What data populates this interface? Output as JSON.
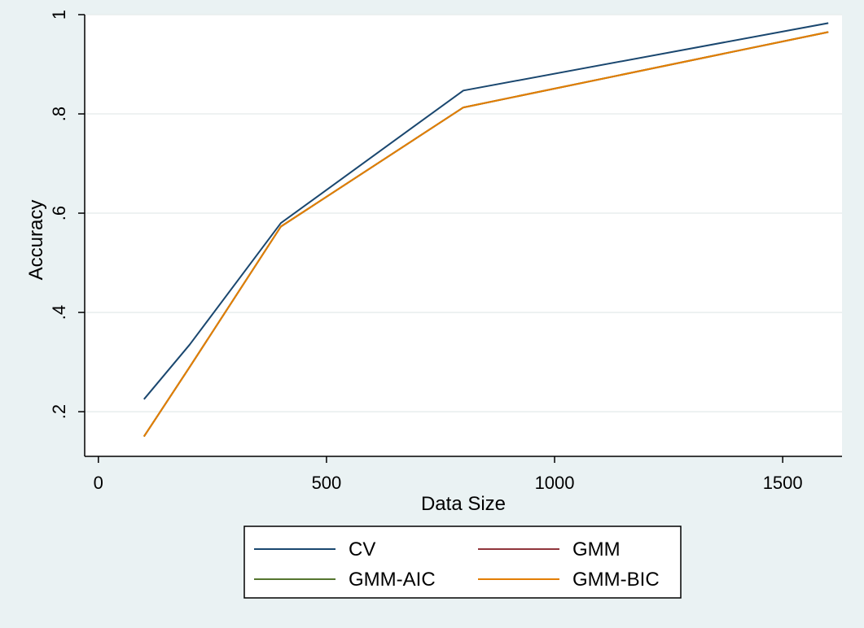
{
  "chart_data": {
    "type": "line",
    "xlabel": "Data Size",
    "ylabel": "Accuracy",
    "xlim": [
      -30,
      1630
    ],
    "ylim": [
      0.11,
      1.0
    ],
    "x_ticks": [
      0,
      500,
      1000,
      1500
    ],
    "x_tick_labels": [
      "0",
      "500",
      "1000",
      "1500"
    ],
    "y_ticks": [
      0.2,
      0.4,
      0.6,
      0.8,
      1.0
    ],
    "y_tick_labels": [
      ".2",
      ".4",
      ".6",
      ".8",
      "1"
    ],
    "grid": true,
    "legend_placement": "bottom",
    "series": [
      {
        "name": "CV",
        "color": "#1a476f",
        "x": [
          100,
          200,
          400,
          800,
          1600
        ],
        "y": [
          0.225,
          0.335,
          0.58,
          0.847,
          0.983
        ]
      },
      {
        "name": "GMM",
        "color": "#90353b",
        "x": [
          100,
          200,
          400,
          800,
          1600
        ],
        "y": [
          0.15,
          0.29,
          0.573,
          0.813,
          0.965
        ]
      },
      {
        "name": "GMM-AIC",
        "color": "#55752f",
        "x": [
          100,
          200,
          400,
          800,
          1600
        ],
        "y": [
          0.15,
          0.29,
          0.573,
          0.813,
          0.965
        ]
      },
      {
        "name": "GMM-BIC",
        "color": "#e37e00",
        "x": [
          100,
          200,
          400,
          800,
          1600
        ],
        "y": [
          0.15,
          0.29,
          0.573,
          0.813,
          0.965
        ]
      }
    ]
  }
}
